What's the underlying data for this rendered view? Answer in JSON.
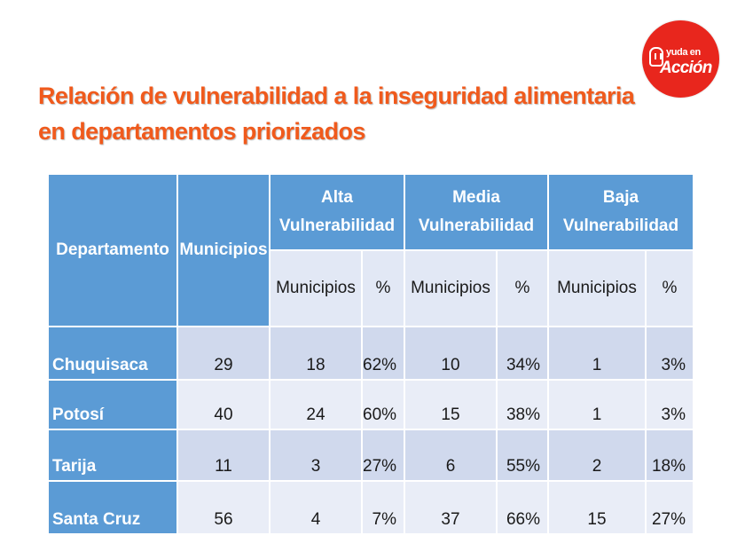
{
  "logo": {
    "line1": "yuda en",
    "line2": "Acción"
  },
  "title": {
    "line1": "Relación de vulnerabilidad a la inseguridad alimentaria",
    "line2": "en departamentos priorizados"
  },
  "table": {
    "headers": {
      "departamento": "Departamento",
      "municipios": "Municipios",
      "alta": [
        "Alta",
        "Vulnerabilidad"
      ],
      "media": [
        "Media",
        "Vulnerabilidad"
      ],
      "baja": [
        "Baja",
        "Vulnerabilidad"
      ],
      "sub_municipios": "Municipios",
      "sub_pct": "%"
    },
    "rows": [
      {
        "departamento": "Chuquisaca",
        "municipios": "29",
        "alta_mun": "18",
        "alta_pct": "62%",
        "media_mun": "10",
        "media_pct": "34%",
        "baja_mun": "1",
        "baja_pct": "3%"
      },
      {
        "departamento": "Potosí",
        "municipios": "40",
        "alta_mun": "24",
        "alta_pct": "60%",
        "media_mun": "15",
        "media_pct": "38%",
        "baja_mun": "1",
        "baja_pct": "3%"
      },
      {
        "departamento": "Tarija",
        "municipios": "11",
        "alta_mun": "3",
        "alta_pct": "27%",
        "media_mun": "6",
        "media_pct": "55%",
        "baja_mun": "2",
        "baja_pct": "18%"
      },
      {
        "departamento": "Santa Cruz",
        "municipios": "56",
        "alta_mun": "4",
        "alta_pct": "7%",
        "media_mun": "37",
        "media_pct": "66%",
        "baja_mun": "15",
        "baja_pct": "27%"
      }
    ]
  },
  "colors": {
    "title": "#f05a1c",
    "header_blue": "#5b9bd5",
    "row_dark": "#d0d9ed",
    "row_light": "#e9edf7",
    "logo_red": "#e8261d"
  }
}
